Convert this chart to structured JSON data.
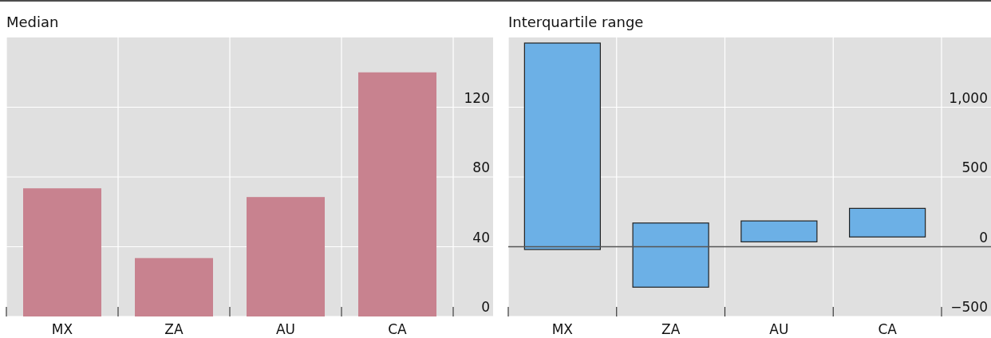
{
  "chart_data": [
    {
      "type": "bar",
      "title": "Median",
      "categories": [
        "MX",
        "ZA",
        "AU",
        "CA"
      ],
      "values": [
        73.5,
        33.5,
        68.5,
        140
      ],
      "color": "#c8828f",
      "ylim": [
        0,
        160
      ],
      "yticks": [
        0,
        40,
        80,
        120
      ],
      "grid": true
    },
    {
      "type": "bar",
      "title": "Interquartile range",
      "categories": [
        "MX",
        "ZA",
        "AU",
        "CA"
      ],
      "base": [
        -20,
        -290,
        35,
        70
      ],
      "values": [
        1480,
        460,
        150,
        205
      ],
      "color": "#6cb0e6",
      "ylim": [
        -500,
        1500
      ],
      "yticks": [
        {
          "value": -500,
          "label": "−500"
        },
        0,
        500,
        {
          "value": 1000,
          "label": "1,000"
        }
      ],
      "grid": true,
      "ref_lines": [
        {
          "axis": "y",
          "value": 0,
          "color": "#555555"
        }
      ]
    }
  ]
}
